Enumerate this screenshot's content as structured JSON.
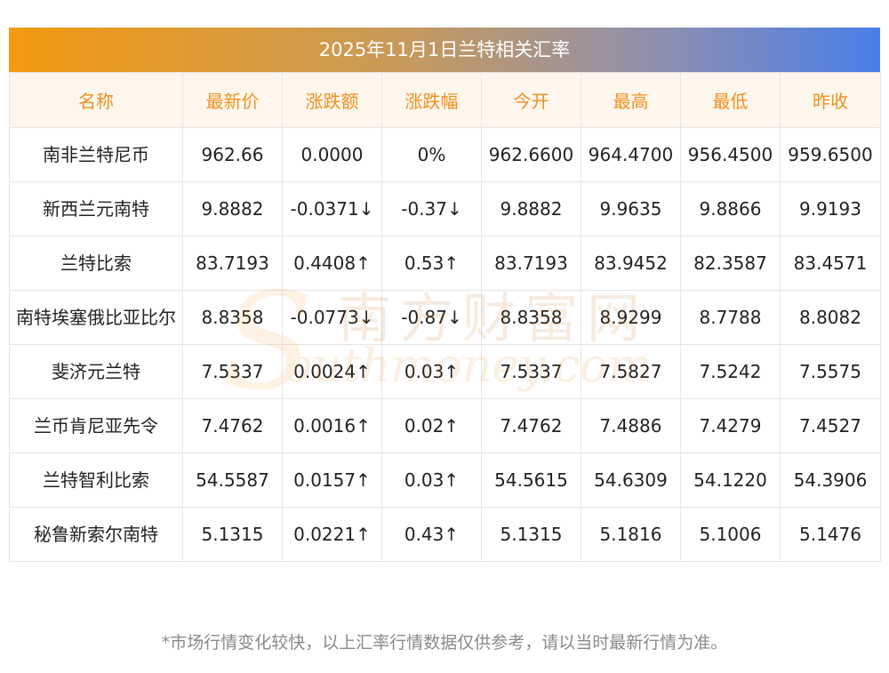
{
  "title": "2025年11月1日兰特相关汇率",
  "chart_data": {
    "type": "table",
    "columns": [
      "名称",
      "最新价",
      "涨跌额",
      "涨跌幅",
      "今开",
      "最高",
      "最低",
      "昨收"
    ],
    "rows": [
      {
        "name": "南非兰特尼币",
        "latest": "962.66",
        "change": "0.0000",
        "pct": "0%",
        "open": "962.6600",
        "high": "964.4700",
        "low": "956.4500",
        "prev": "959.6500",
        "trend": "flat"
      },
      {
        "name": "新西兰元南特",
        "latest": "9.8882",
        "change": "-0.0371↓",
        "pct": "-0.37↓",
        "open": "9.8882",
        "high": "9.9635",
        "low": "9.8866",
        "prev": "9.9193",
        "trend": "down"
      },
      {
        "name": "兰特比索",
        "latest": "83.7193",
        "change": "0.4408↑",
        "pct": "0.53↑",
        "open": "83.7193",
        "high": "83.9452",
        "low": "82.3587",
        "prev": "83.4571",
        "trend": "up"
      },
      {
        "name": "南特埃塞俄比亚比尔",
        "latest": "8.8358",
        "change": "-0.0773↓",
        "pct": "-0.87↓",
        "open": "8.8358",
        "high": "8.9299",
        "low": "8.7788",
        "prev": "8.8082",
        "trend": "down"
      },
      {
        "name": "斐济元兰特",
        "latest": "7.5337",
        "change": "0.0024↑",
        "pct": "0.03↑",
        "open": "7.5337",
        "high": "7.5827",
        "low": "7.5242",
        "prev": "7.5575",
        "trend": "up"
      },
      {
        "name": "兰币肯尼亚先令",
        "latest": "7.4762",
        "change": "0.0016↑",
        "pct": "0.02↑",
        "open": "7.4762",
        "high": "7.4886",
        "low": "7.4279",
        "prev": "7.4527",
        "trend": "up"
      },
      {
        "name": "兰特智利比索",
        "latest": "54.5587",
        "change": "0.0157↑",
        "pct": "0.03↑",
        "open": "54.5615",
        "high": "54.6309",
        "low": "54.1220",
        "prev": "54.3906",
        "trend": "up"
      },
      {
        "name": "秘鲁新索尔南特",
        "latest": "5.1315",
        "change": "0.0221↑",
        "pct": "0.43↑",
        "open": "5.1315",
        "high": "5.1816",
        "low": "5.1006",
        "prev": "5.1476",
        "trend": "up"
      }
    ]
  },
  "note": "*市场行情变化较快，以上汇率行情数据仅供参考，请以当时最新行情为准。",
  "watermark": {
    "cn": "南方财富网",
    "en": "outhmoney.com",
    "s": "S"
  },
  "colors": {
    "up": "#e8201f",
    "down": "#1f8a1f",
    "header": "#f1901f"
  }
}
